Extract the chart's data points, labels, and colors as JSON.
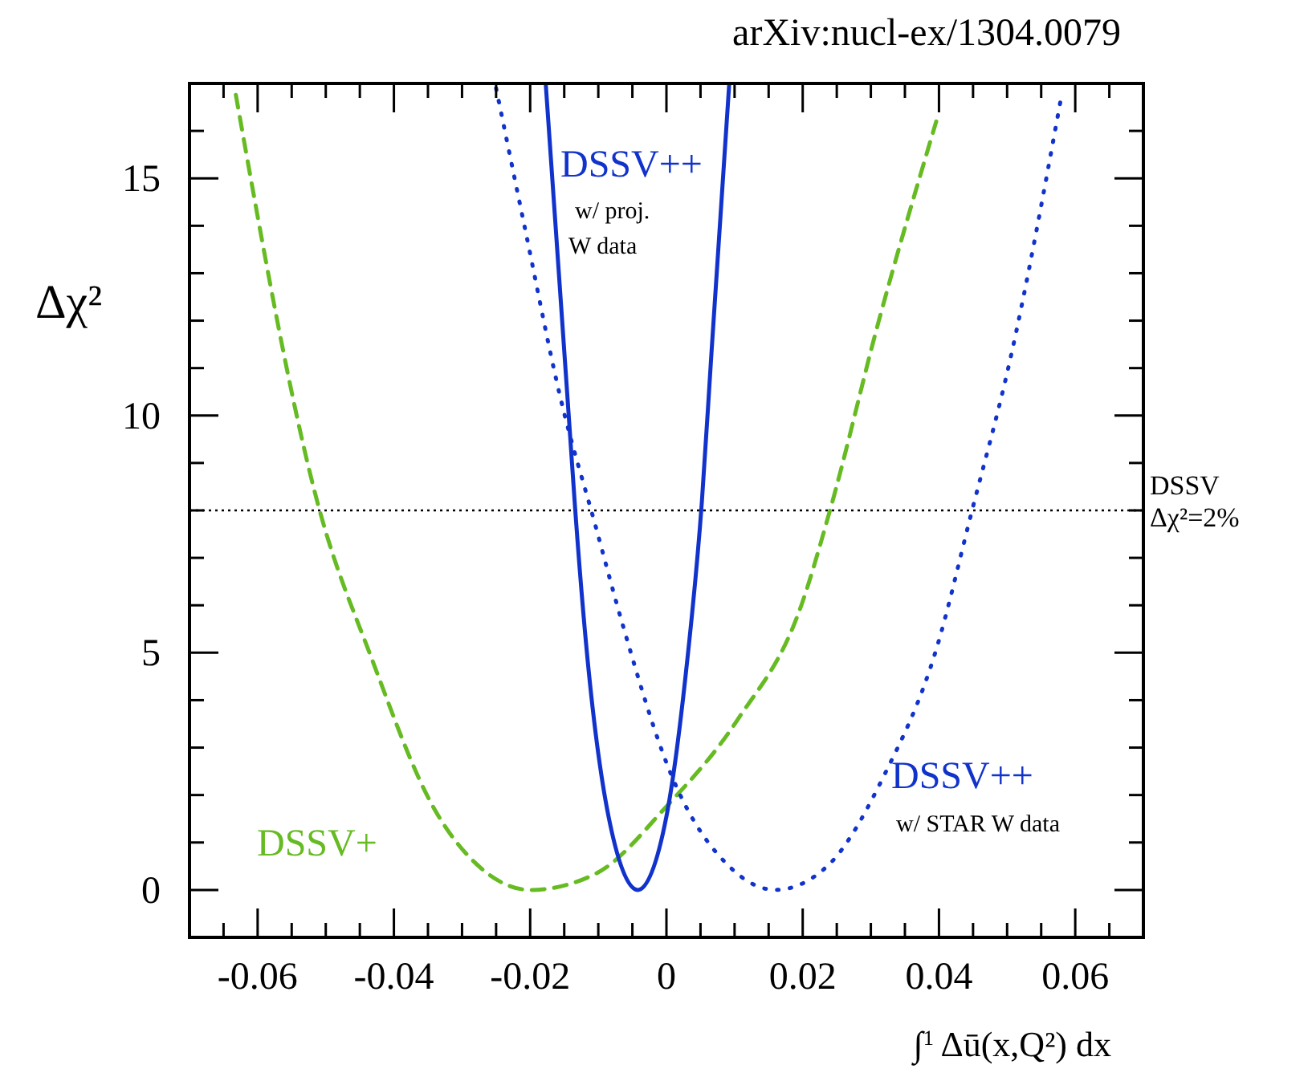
{
  "chart_data": {
    "type": "line",
    "xlabel": "∫$^{1}$Δū(x,Q²) dx",
    "ylabel": "Δχ²",
    "xlim": [
      -0.07,
      0.07
    ],
    "ylim": [
      -1,
      17
    ],
    "xticks": [
      {
        "value": -0.07,
        "label": null
      },
      {
        "value": -0.065,
        "label": null
      },
      {
        "value": -0.06,
        "label": "-0.06"
      },
      {
        "value": -0.055,
        "label": null
      },
      {
        "value": -0.05,
        "label": null
      },
      {
        "value": -0.045,
        "label": null
      },
      {
        "value": -0.04,
        "label": "-0.04"
      },
      {
        "value": -0.035,
        "label": null
      },
      {
        "value": -0.03,
        "label": null
      },
      {
        "value": -0.025,
        "label": null
      },
      {
        "value": -0.02,
        "label": "-0.02"
      },
      {
        "value": -0.015,
        "label": null
      },
      {
        "value": -0.01,
        "label": null
      },
      {
        "value": -0.005,
        "label": null
      },
      0,
      {
        "value": 0.005,
        "label": null
      },
      {
        "value": 0.01,
        "label": null
      },
      {
        "value": 0.015,
        "label": null
      },
      {
        "value": 0.02,
        "label": "0.02"
      },
      {
        "value": 0.025,
        "label": null
      },
      {
        "value": 0.03,
        "label": null
      },
      {
        "value": 0.035,
        "label": null
      },
      {
        "value": 0.04,
        "label": "0.04"
      },
      {
        "value": 0.045,
        "label": null
      },
      {
        "value": 0.05,
        "label": null
      },
      {
        "value": 0.055,
        "label": null
      },
      {
        "value": 0.06,
        "label": "0.06"
      },
      {
        "value": 0.065,
        "label": null
      }
    ],
    "yticks": [
      0,
      {
        "value": 1,
        "label": null
      },
      {
        "value": 2,
        "label": null
      },
      {
        "value": 3,
        "label": null
      },
      {
        "value": 4,
        "label": null
      },
      5,
      {
        "value": 6,
        "label": null
      },
      {
        "value": 7,
        "label": null
      },
      {
        "value": 8,
        "label": null
      },
      {
        "value": 9,
        "label": null
      },
      10,
      {
        "value": 11,
        "label": null
      },
      {
        "value": 12,
        "label": null
      },
      {
        "value": 13,
        "label": null
      },
      {
        "value": 14,
        "label": null
      },
      15,
      {
        "value": 16,
        "label": null
      }
    ],
    "grid": false,
    "legend": false,
    "series": [
      {
        "name": "DSSV+",
        "color": "#66bb22",
        "line_style": "dashed",
        "x": [
          -0.0632,
          -0.0509,
          -0.0434,
          -0.034,
          -0.0273,
          -0.02,
          -0.0104,
          0,
          0.0104,
          0.0198,
          0.024,
          0.0311,
          0.0396
        ],
        "values": [
          16.76,
          8.0,
          4.93,
          1.69,
          0.47,
          0,
          0.34,
          1.76,
          3.58,
          6.0,
          8.0,
          11.96,
          16.2
        ]
      },
      {
        "name": "DSSV++",
        "color": "#1133cc",
        "line_style": "solid",
        "x": [
          -0.0177,
          -0.0141,
          -0.0134,
          -0.0118,
          -0.0085,
          -0.0042,
          0,
          0.0028,
          0.0052,
          0.0066,
          0.0092
        ],
        "values": [
          16.96,
          9.5,
          8.04,
          5.2,
          1.55,
          0,
          1.55,
          4.5,
          8.18,
          11.3,
          16.96
        ]
      },
      {
        "name": "DSSV++",
        "color": "#1133cc",
        "line_style": "dotted",
        "x": [
          -0.025,
          -0.0207,
          -0.0156,
          -0.0104,
          -0.0066,
          0.0009,
          0.0094,
          0.016,
          0.0236,
          0.032,
          0.0396,
          0.0448,
          0.0504,
          0.058
        ],
        "values": [
          16.9,
          13.9,
          10.4,
          7.67,
          5.68,
          2.36,
          0.47,
          0,
          0.5,
          2.43,
          5.07,
          7.97,
          11.15,
          16.76
        ]
      }
    ],
    "ref_lines": [
      {
        "axis": "y",
        "value": 8,
        "line_style": "dotted",
        "color": "#000000"
      }
    ],
    "annotations": [
      "arXiv:nucl-ex/1304.0079",
      "w/ proj.",
      "W data",
      "w/ STAR W data",
      "DSSV",
      "Δχ²=2%"
    ]
  }
}
